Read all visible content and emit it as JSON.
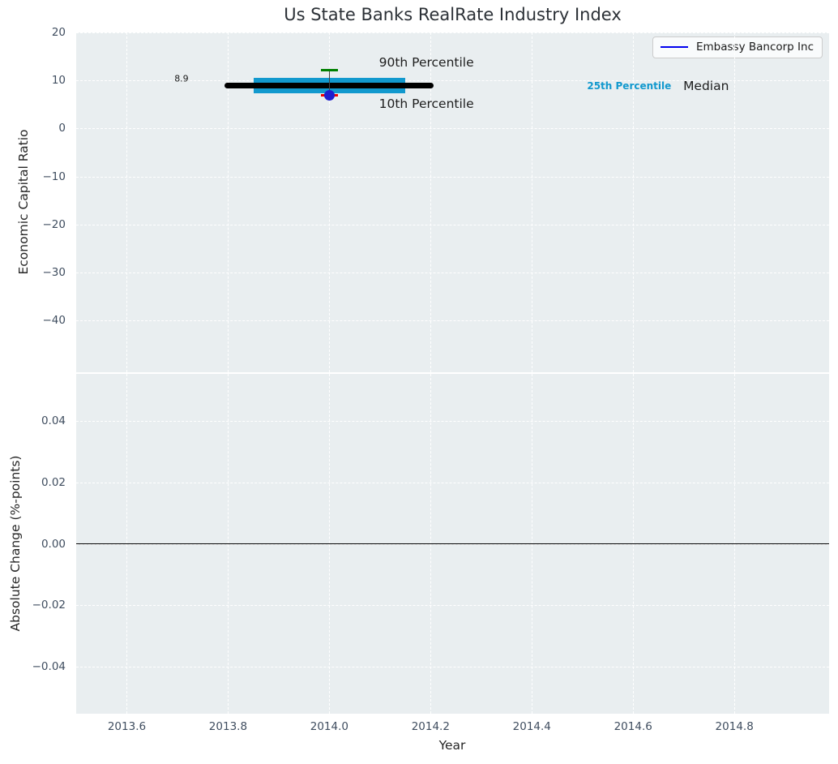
{
  "colors": {
    "axes_background": "#e9eef0",
    "grid": "#ffffff",
    "tick_text": "#3f4d5f",
    "label_text": "#262626",
    "company_line": "#0000ee",
    "company_point": "#1d1dcf",
    "median": "#000000",
    "iqr_band": "#1299ce",
    "p90_cap": "#008000",
    "p10_cap": "#ee0000",
    "whisker": "#444444",
    "zero_line": "#000000"
  },
  "chart_data": [
    {
      "type": "scatter",
      "title": "Us State Banks RealRate Industry Index",
      "ylabel": "Economic Capital Ratio",
      "xlim": [
        2013.5,
        2014.987
      ],
      "ylim": [
        -50.8,
        20
      ],
      "grid": "dashed-white",
      "xticks": [
        2013.6,
        2013.8,
        2014.0,
        2014.2,
        2014.4,
        2014.6,
        2014.8
      ],
      "xticklabels": [
        "2013.6",
        "2013.8",
        "2014.0",
        "2014.2",
        "2014.4",
        "2014.6",
        "2014.8"
      ],
      "yticks": [
        20,
        10,
        0,
        -10,
        -20,
        -30,
        -40
      ],
      "yticklabels": [
        "20",
        "10",
        "0",
        "−10",
        "−20",
        "−30",
        "−40"
      ],
      "legend": {
        "label": "Embassy Bancorp Inc",
        "position": "upper right"
      },
      "series": [
        {
          "name": "Embassy Bancorp Inc",
          "x": [
            2014.0
          ],
          "y": [
            6.9
          ]
        }
      ],
      "industry": {
        "year": 2014.0,
        "median": {
          "value": 8.9,
          "x_span": [
            2013.8,
            2014.2
          ]
        },
        "iqr": {
          "p25": 7.4,
          "p75": 10.6,
          "x_span": [
            2013.85,
            2014.15
          ]
        },
        "p90": {
          "value": 12.2
        },
        "p10": {
          "value": 6.9
        }
      },
      "annotations": [
        {
          "text": "8.9",
          "x": 2013.694,
          "y": 10.45,
          "kind": "value"
        },
        {
          "text": "90th Percentile",
          "x": 2014.098,
          "y": 13.75,
          "kind": "large"
        },
        {
          "text": "10th Percentile",
          "x": 2014.098,
          "y": 5.13,
          "kind": "large"
        },
        {
          "text": "25th Percentile",
          "x": 2014.509,
          "y": 8.85,
          "kind": "cyan"
        },
        {
          "text": "Median",
          "x": 2014.699,
          "y": 8.8,
          "kind": "large"
        }
      ]
    },
    {
      "type": "line",
      "ylabel": "Absolute Change (%-points)",
      "xlabel": "Year",
      "xlim": [
        2013.5,
        2014.987
      ],
      "ylim": [
        -0.0553,
        0.0553
      ],
      "grid": "dashed-white",
      "xticks": [
        2013.6,
        2013.8,
        2014.0,
        2014.2,
        2014.4,
        2014.6,
        2014.8
      ],
      "xticklabels": [
        "2013.6",
        "2013.8",
        "2014.0",
        "2014.2",
        "2014.4",
        "2014.6",
        "2014.8"
      ],
      "yticks": [
        0.04,
        0.02,
        0.0,
        -0.02,
        -0.04
      ],
      "yticklabels": [
        "0.04",
        "0.02",
        "0.00",
        "−0.02",
        "−0.04"
      ],
      "zero_line": 0.0
    }
  ]
}
